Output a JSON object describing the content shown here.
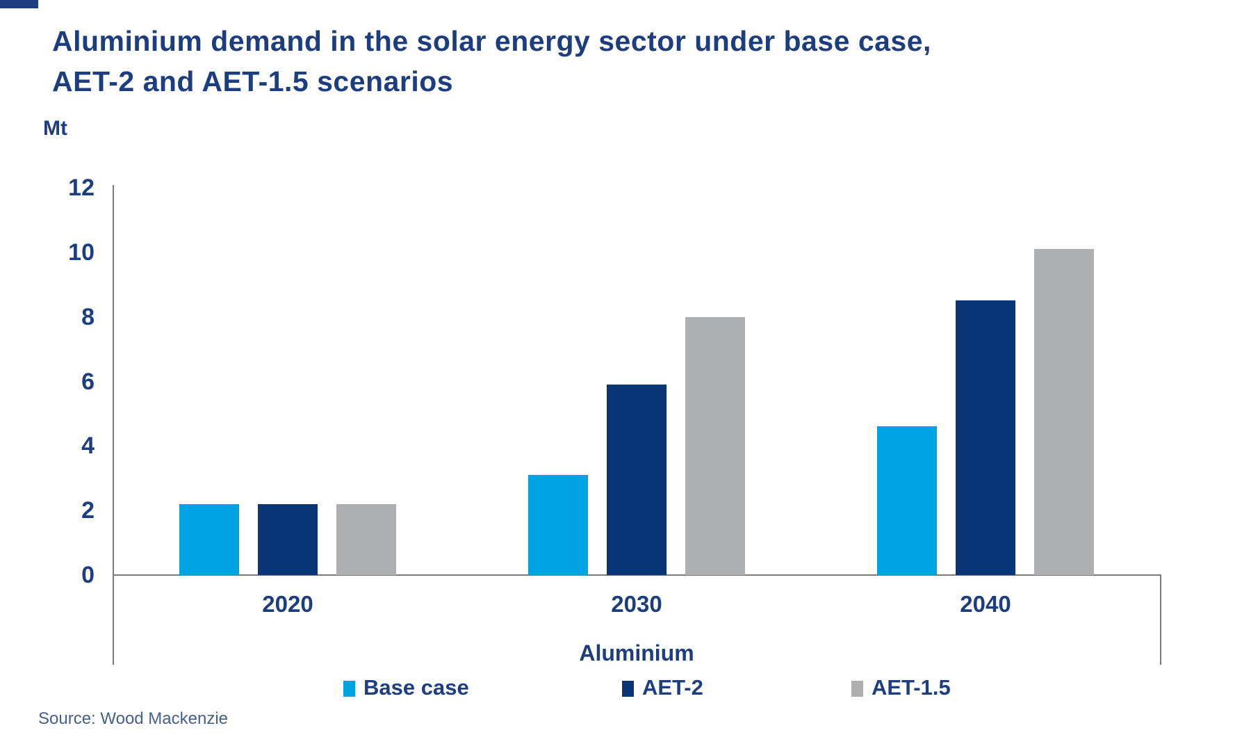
{
  "chart_data": {
    "type": "bar",
    "title": "Aluminium demand in the solar energy sector under base case,\nAET-2 and AET-1.5 scenarios",
    "unit_label": "Mt",
    "xlabel": "Aluminium",
    "categories": [
      "2020",
      "2030",
      "2040"
    ],
    "series": [
      {
        "name": "Base case",
        "color": "#00A3E2",
        "values": [
          2.2,
          3.1,
          4.6
        ]
      },
      {
        "name": "AET-2",
        "color": "#0A3577",
        "values": [
          2.2,
          5.9,
          8.5
        ]
      },
      {
        "name": "AET-1.5",
        "color": "#AEAFB2",
        "values": [
          2.2,
          8.0,
          10.1
        ]
      }
    ],
    "ylim": [
      0,
      12
    ],
    "yticks": [
      0,
      2,
      4,
      6,
      8,
      10,
      12
    ],
    "grid": false,
    "legend_position": "bottom",
    "source_note": "Source: Wood Mackenzie"
  },
  "colors": {
    "text_navy": "#1C3E80",
    "axis_gray": "#7B7B7B",
    "source_text": "#44608F",
    "base_case": "#00A3E2",
    "aet2": "#0A3577",
    "aet15": "#AEAFB2"
  }
}
